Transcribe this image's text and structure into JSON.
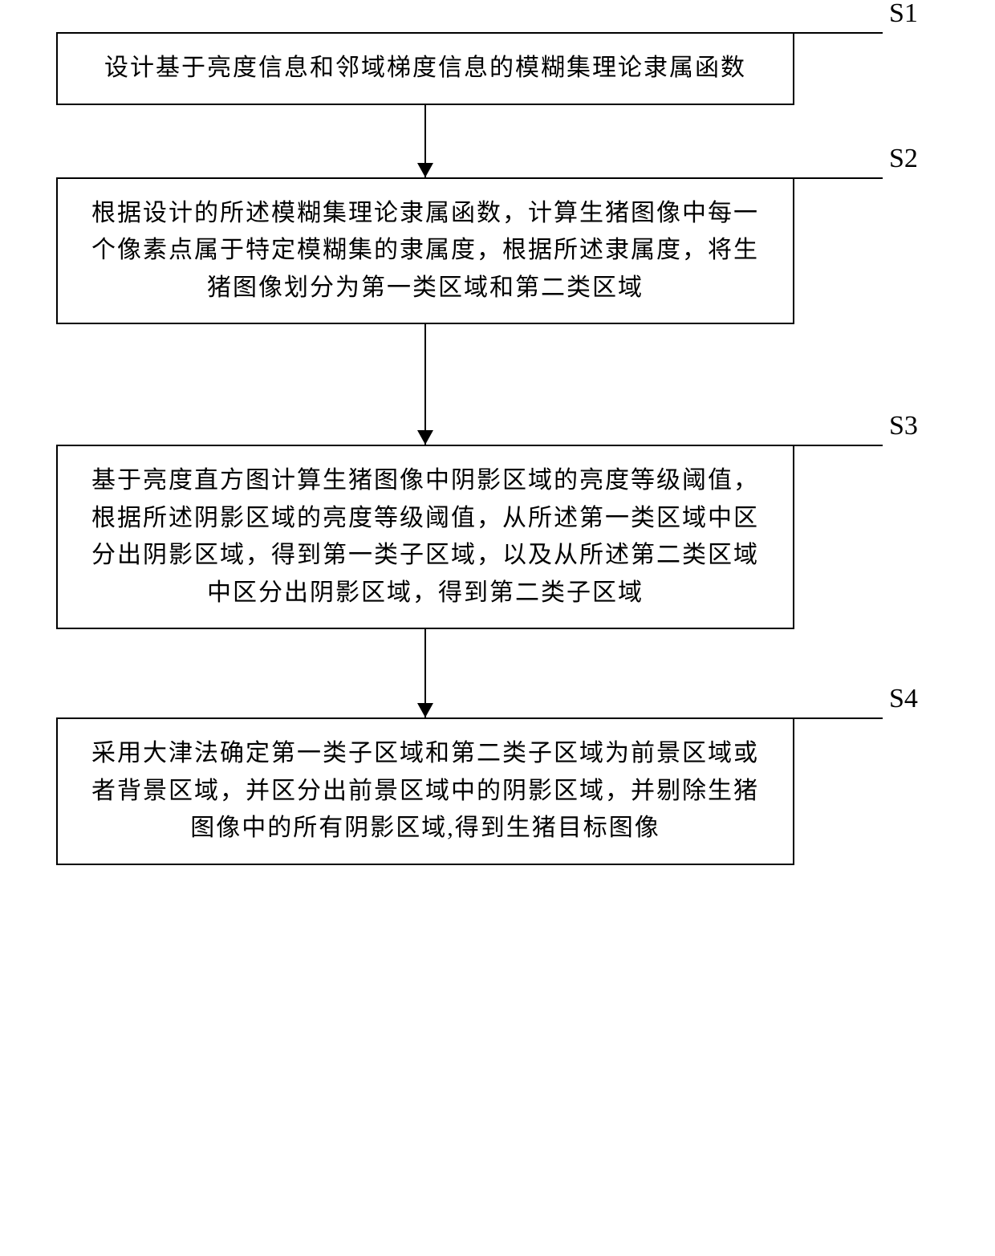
{
  "flowchart": {
    "type": "flowchart",
    "background_color": "#ffffff",
    "box_border_color": "#000000",
    "box_border_width": 2,
    "text_color": "#000000",
    "font_size_body": 30,
    "font_size_label": 34,
    "arrow_color": "#000000",
    "step_labels": [
      "S1",
      "S2",
      "S3",
      "S4"
    ],
    "connector_lengths": [
      110,
      110,
      110,
      110
    ],
    "label_offsets": [
      118,
      118,
      118,
      118
    ],
    "arrow_heights": [
      90,
      150,
      110
    ],
    "steps": [
      {
        "text": "设计基于亮度信息和邻域梯度信息的模糊集理论隶属函数",
        "label": "S1"
      },
      {
        "text": "根据设计的所述模糊集理论隶属函数，计算生猪图像中每一个像素点属于特定模糊集的隶属度，根据所述隶属度，将生猪图像划分为第一类区域和第二类区域",
        "label": "S2"
      },
      {
        "text": "基于亮度直方图计算生猪图像中阴影区域的亮度等级阈值，根据所述阴影区域的亮度等级阈值，从所述第一类区域中区分出阴影区域，得到第一类子区域，以及从所述第二类区域中区分出阴影区域，得到第二类子区域",
        "label": "S3"
      },
      {
        "text": "采用大津法确定第一类子区域和第二类子区域为前景区域或者背景区域，并区分出前景区域中的阴影区域，并剔除生猪图像中的所有阴影区域,得到生猪目标图像",
        "label": "S4"
      }
    ]
  }
}
